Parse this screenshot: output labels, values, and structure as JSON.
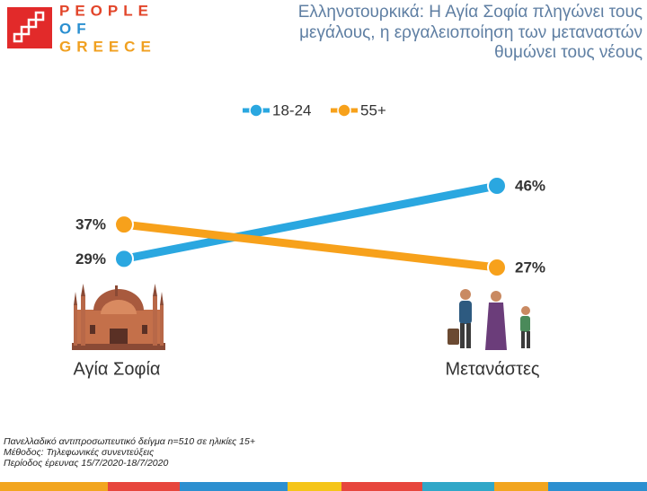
{
  "logo": [
    "PEOPLE",
    "OF",
    "GREECE"
  ],
  "chart_data": {
    "type": "slope",
    "title": [
      "Ελληνοτουρκικά: Η Αγία Σοφία πληγώνει τους",
      "μεγάλους, η εργαλειοποίηση των μεταναστών",
      "θυμώνει τους νέους"
    ],
    "categories": [
      "Αγία Σοφία",
      "Μετανάστες"
    ],
    "series": [
      {
        "name": "18-24",
        "color": "#2aa7e0",
        "values": [
          29,
          46
        ],
        "value_labels": [
          "29%",
          "46%"
        ]
      },
      {
        "name": "55+",
        "color": "#f7a11b",
        "values": [
          37,
          27
        ],
        "value_labels": [
          "37%",
          "27%"
        ]
      }
    ],
    "legend": "top"
  },
  "footnotes": [
    "Πανελλαδικό αντιπροσωπευτικό δείγμα n=510 σε ηλικίες 15+",
    "Μέθοδος: Τηλεφωνικές συνεντεύξεις",
    "Περίοδος έρευνας 15/7/2020-18/7/2020"
  ]
}
